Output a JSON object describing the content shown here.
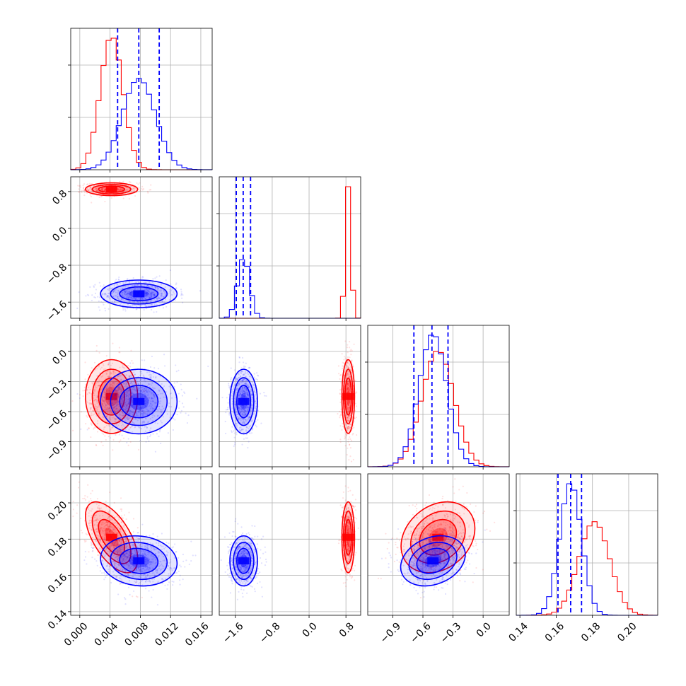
{
  "colors": {
    "series_a": "#ff0000",
    "series_b": "#0000ff",
    "grid": "#b0b0b0"
  },
  "chart_data": {
    "type": "corner",
    "legend": "none",
    "grid": true,
    "series": [
      {
        "color": "#ff0000",
        "mean": [
          0.0042,
          0.85,
          -0.45,
          0.181
        ],
        "sd": [
          0.0015,
          0.06,
          0.16,
          0.0085
        ],
        "corr": {
          "0-3": -0.6,
          "2-3": 0.25
        }
      },
      {
        "color": "#0000ff",
        "mean": [
          0.0078,
          -1.42,
          -0.5,
          0.168
        ],
        "sd": [
          0.0022,
          0.13,
          0.14,
          0.006
        ],
        "corr": {
          "0-3": -0.1,
          "2-3": 0.25
        }
      }
    ],
    "quantile_lines": [
      [
        0.005,
        0.0078,
        0.0105
      ],
      [
        -1.58,
        -1.43,
        -1.27
      ],
      [
        -0.69,
        -0.51,
        -0.35
      ],
      [
        0.161,
        0.168,
        0.174
      ]
    ],
    "parameters": [
      {
        "range": [
          -0.0012,
          0.0175
        ],
        "ticks": [
          0.0,
          0.004,
          0.008,
          0.012,
          0.016
        ],
        "tick_labels": [
          "0.000",
          "0.004",
          "0.008",
          "0.012",
          "0.016"
        ]
      },
      {
        "range": [
          -1.95,
          1.12
        ],
        "ticks": [
          -1.6,
          -0.8,
          0.0,
          0.8
        ],
        "tick_labels": [
          "−1.6",
          "−0.8",
          "0.0",
          "0.8"
        ]
      },
      {
        "range": [
          -1.15,
          0.26
        ],
        "ticks": [
          -0.9,
          -0.6,
          -0.3,
          0.0
        ],
        "tick_labels": [
          "−0.9",
          "−0.6",
          "−0.3",
          "0.0"
        ]
      },
      {
        "range": [
          0.138,
          0.216
        ],
        "ticks": [
          0.14,
          0.16,
          0.18,
          0.2
        ],
        "tick_labels": [
          "0.14",
          "0.16",
          "0.18",
          "0.20"
        ]
      }
    ]
  }
}
